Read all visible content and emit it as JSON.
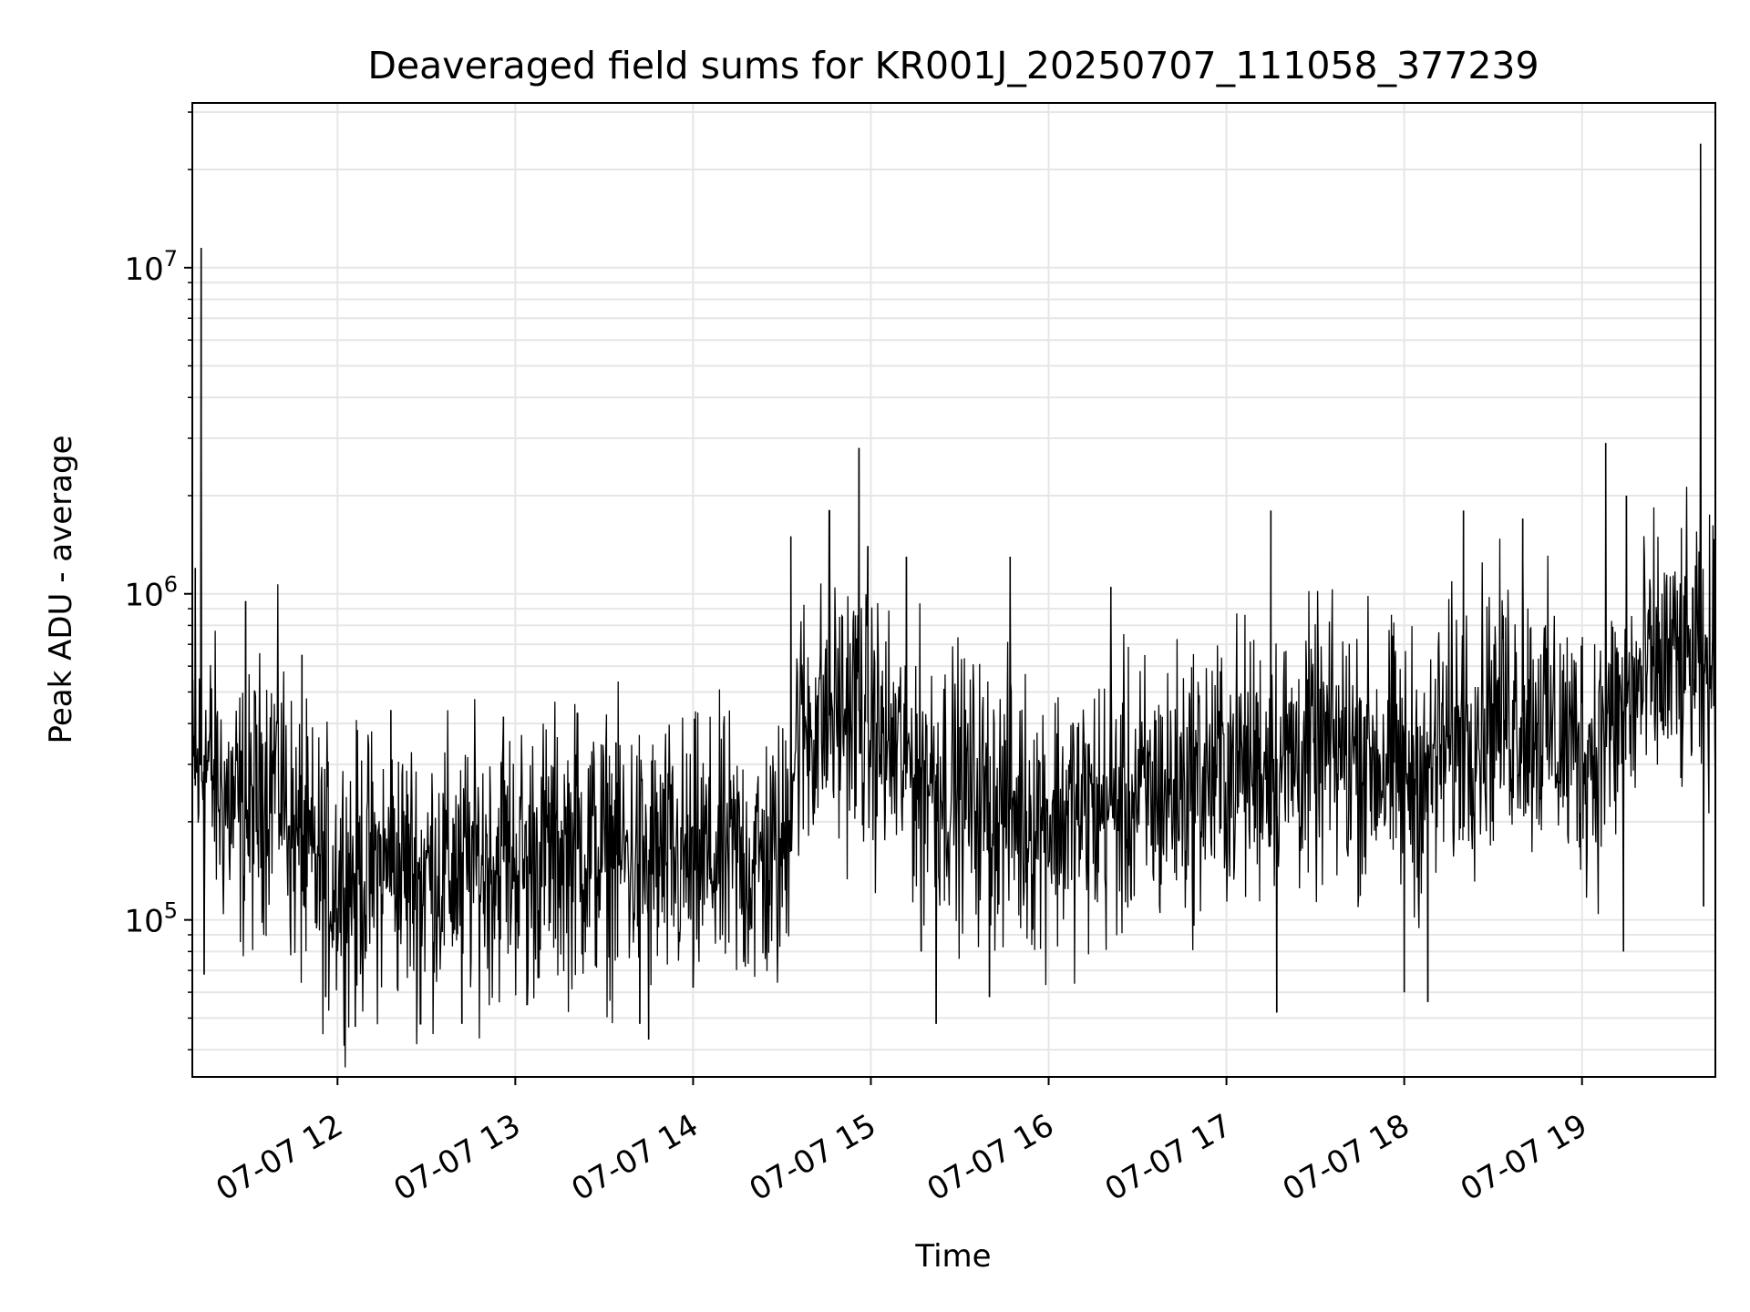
{
  "chart_data": {
    "type": "line",
    "title": "Deaveraged field sums for KR001J_20250707_111058_377239",
    "xlabel": "Time",
    "ylabel": "Peak ADU - average",
    "x_range": [
      "2025-07-07 11:11",
      "2025-07-07 19:45"
    ],
    "x_ticks": [
      {
        "value": "2025-07-07 12:00",
        "label": "07-07 12"
      },
      {
        "value": "2025-07-07 13:00",
        "label": "07-07 13"
      },
      {
        "value": "2025-07-07 14:00",
        "label": "07-07 14"
      },
      {
        "value": "2025-07-07 15:00",
        "label": "07-07 15"
      },
      {
        "value": "2025-07-07 16:00",
        "label": "07-07 16"
      },
      {
        "value": "2025-07-07 17:00",
        "label": "07-07 17"
      },
      {
        "value": "2025-07-07 18:00",
        "label": "07-07 18"
      },
      {
        "value": "2025-07-07 19:00",
        "label": "07-07 19"
      }
    ],
    "y_scale": "log",
    "ylim": [
      33000,
      32000000
    ],
    "y_ticks": [
      {
        "value": 100000,
        "base": "10",
        "exp": "5"
      },
      {
        "value": 1000000,
        "base": "10",
        "exp": "6"
      },
      {
        "value": 10000000,
        "base": "10",
        "exp": "7"
      }
    ],
    "grid": true,
    "line_color": "#000000",
    "series": [
      {
        "points": [
          [
            "2025-07-07 11:11",
            240000
          ],
          [
            "2025-07-07 11:15",
            320000
          ],
          [
            "2025-07-07 11:20",
            250000
          ],
          [
            "2025-07-07 11:25",
            220000
          ],
          [
            "2025-07-07 11:30",
            200000
          ],
          [
            "2025-07-07 11:35",
            260000
          ],
          [
            "2025-07-07 11:40",
            300000
          ],
          [
            "2025-07-07 11:45",
            180000
          ],
          [
            "2025-07-07 11:50",
            150000
          ],
          [
            "2025-07-07 11:55",
            140000
          ],
          [
            "2025-07-07 12:00",
            135000
          ],
          [
            "2025-07-07 12:10",
            140000
          ],
          [
            "2025-07-07 12:20",
            145000
          ],
          [
            "2025-07-07 12:30",
            140000
          ],
          [
            "2025-07-07 12:40",
            145000
          ],
          [
            "2025-07-07 12:50",
            150000
          ],
          [
            "2025-07-07 13:00",
            155000
          ],
          [
            "2025-07-07 13:10",
            160000
          ],
          [
            "2025-07-07 13:20",
            165000
          ],
          [
            "2025-07-07 13:30",
            160000
          ],
          [
            "2025-07-07 13:40",
            155000
          ],
          [
            "2025-07-07 13:50",
            150000
          ],
          [
            "2025-07-07 14:00",
            150000
          ],
          [
            "2025-07-07 14:10",
            155000
          ],
          [
            "2025-07-07 14:20",
            150000
          ],
          [
            "2025-07-07 14:30",
            150000
          ],
          [
            "2025-07-07 14:35",
            380000
          ],
          [
            "2025-07-07 14:45",
            420000
          ],
          [
            "2025-07-07 14:55",
            450000
          ],
          [
            "2025-07-07 15:05",
            340000
          ],
          [
            "2025-07-07 15:15",
            300000
          ],
          [
            "2025-07-07 15:25",
            270000
          ],
          [
            "2025-07-07 15:35",
            240000
          ],
          [
            "2025-07-07 15:45",
            220000
          ],
          [
            "2025-07-07 15:55",
            210000
          ],
          [
            "2025-07-07 16:05",
            210000
          ],
          [
            "2025-07-07 16:15",
            215000
          ],
          [
            "2025-07-07 16:25",
            230000
          ],
          [
            "2025-07-07 16:35",
            240000
          ],
          [
            "2025-07-07 16:45",
            260000
          ],
          [
            "2025-07-07 16:55",
            280000
          ],
          [
            "2025-07-07 17:05",
            300000
          ],
          [
            "2025-07-07 17:15",
            310000
          ],
          [
            "2025-07-07 17:25",
            320000
          ],
          [
            "2025-07-07 17:35",
            330000
          ],
          [
            "2025-07-07 17:45",
            330000
          ],
          [
            "2025-07-07 17:55",
            300000
          ],
          [
            "2025-07-07 18:05",
            280000
          ],
          [
            "2025-07-07 18:15",
            350000
          ],
          [
            "2025-07-07 18:25",
            420000
          ],
          [
            "2025-07-07 18:35",
            450000
          ],
          [
            "2025-07-07 18:45",
            420000
          ],
          [
            "2025-07-07 18:55",
            350000
          ],
          [
            "2025-07-07 19:05",
            330000
          ],
          [
            "2025-07-07 19:15",
            450000
          ],
          [
            "2025-07-07 19:25",
            600000
          ],
          [
            "2025-07-07 19:35",
            620000
          ],
          [
            "2025-07-07 19:45",
            600000
          ]
        ],
        "spikes": [
          [
            "2025-07-07 11:12",
            1200000
          ],
          [
            "2025-07-07 11:14",
            11500000
          ],
          [
            "2025-07-07 11:15",
            68000
          ],
          [
            "2025-07-07 11:29",
            950000
          ],
          [
            "2025-07-07 11:48",
            650000
          ],
          [
            "2025-07-07 11:56",
            58000
          ],
          [
            "2025-07-07 12:06",
            47000
          ],
          [
            "2025-07-07 12:18",
            440000
          ],
          [
            "2025-07-07 12:28",
            48000
          ],
          [
            "2025-07-07 12:42",
            48000
          ],
          [
            "2025-07-07 12:56",
            420000
          ],
          [
            "2025-07-07 13:04",
            55000
          ],
          [
            "2025-07-07 13:21",
            430000
          ],
          [
            "2025-07-07 13:34",
            350000
          ],
          [
            "2025-07-07 13:42",
            48000
          ],
          [
            "2025-07-07 13:45",
            43000
          ],
          [
            "2025-07-07 14:00",
            62000
          ],
          [
            "2025-07-07 14:33",
            1500000
          ],
          [
            "2025-07-07 14:46",
            1800000
          ],
          [
            "2025-07-07 14:56",
            2800000
          ],
          [
            "2025-07-07 14:59",
            1400000
          ],
          [
            "2025-07-07 15:12",
            1300000
          ],
          [
            "2025-07-07 15:17",
            80000
          ],
          [
            "2025-07-07 15:22",
            48000
          ],
          [
            "2025-07-07 15:40",
            58000
          ],
          [
            "2025-07-07 15:47",
            1300000
          ],
          [
            "2025-07-07 16:21",
            1050000
          ],
          [
            "2025-07-07 17:15",
            1800000
          ],
          [
            "2025-07-07 17:17",
            52000
          ],
          [
            "2025-07-07 18:00",
            60000
          ],
          [
            "2025-07-07 18:08",
            56000
          ],
          [
            "2025-07-07 18:20",
            1800000
          ],
          [
            "2025-07-07 18:40",
            1700000
          ],
          [
            "2025-07-07 19:08",
            2900000
          ],
          [
            "2025-07-07 19:15",
            2000000
          ],
          [
            "2025-07-07 19:14",
            80000
          ],
          [
            "2025-07-07 19:40",
            24000000
          ],
          [
            "2025-07-07 19:41",
            110000
          ]
        ]
      }
    ]
  }
}
